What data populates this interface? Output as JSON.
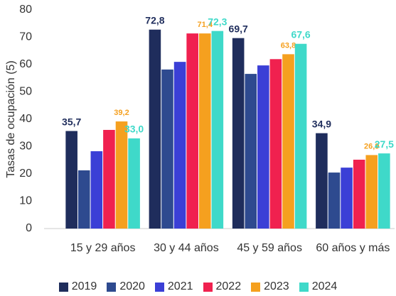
{
  "chart_data": {
    "type": "bar",
    "y_label": "Tasas de ocupación (5)",
    "categories": [
      "15 y 29 años",
      "30 y 44 años",
      "45 y 59 años",
      "60 años y más"
    ],
    "series": [
      {
        "name": "2019",
        "color": "#1f2d5c",
        "values": [
          35.7,
          72.8,
          69.7,
          34.9
        ],
        "value_labels": [
          "35,7",
          "72,8",
          "69,7",
          "34,9"
        ]
      },
      {
        "name": "2020",
        "color": "#2e4a8f",
        "values": [
          21.3,
          58.2,
          56.6,
          20.5
        ]
      },
      {
        "name": "2021",
        "color": "#3b3fd6",
        "values": [
          28.3,
          61.0,
          59.7,
          22.3
        ]
      },
      {
        "name": "2022",
        "color": "#f0214f",
        "values": [
          36.1,
          71.4,
          62.0,
          25.2
        ]
      },
      {
        "name": "2023",
        "color": "#f5a01f",
        "values": [
          39.2,
          71.4,
          63.8,
          26.9
        ],
        "value_labels": [
          "39,2",
          "71,4",
          "63,8",
          "26,9"
        ]
      },
      {
        "name": "2024",
        "color": "#3fd9c9",
        "values": [
          33.0,
          72.3,
          67.6,
          27.5
        ],
        "value_labels": [
          "33,0",
          "72,3",
          "67,6",
          "27,5"
        ]
      }
    ],
    "ylim": [
      0,
      80
    ],
    "yticks": [
      0,
      10,
      20,
      30,
      40,
      50,
      60,
      70,
      80
    ],
    "grid": false,
    "legend": "bottom"
  }
}
